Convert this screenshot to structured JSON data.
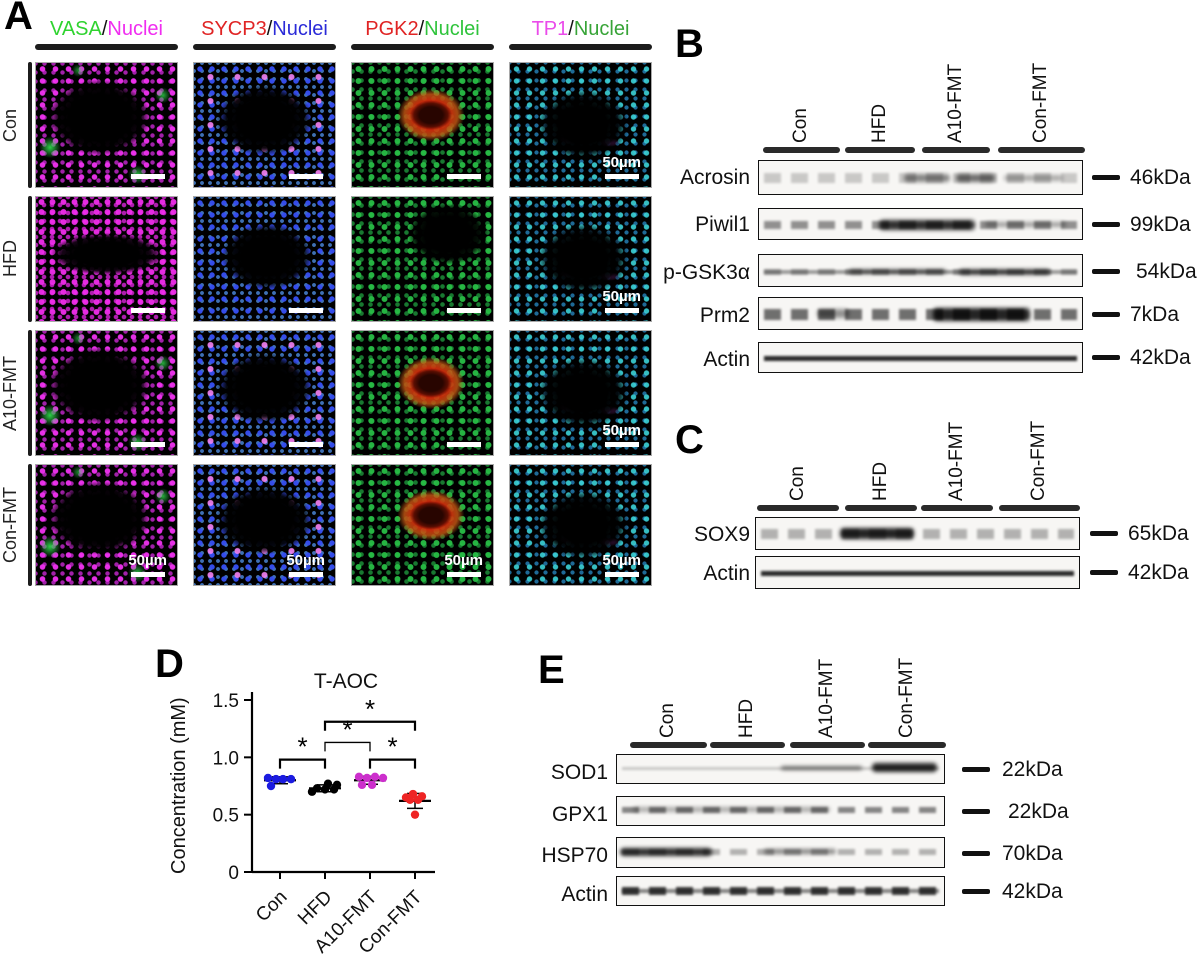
{
  "panel_a": {
    "label": "A",
    "separator": "/",
    "scale_label": "50µm",
    "columns": [
      {
        "stain": "VASA",
        "stain_color": "#2fd32f",
        "counter": "Nuclei",
        "counter_color": "#f02df0"
      },
      {
        "stain": "SYCP3",
        "stain_color": "#e02424",
        "counter": "Nuclei",
        "counter_color": "#2b2bd8"
      },
      {
        "stain": "PGK2",
        "stain_color": "#e02424",
        "counter": "Nuclei",
        "counter_color": "#2fc43c"
      },
      {
        "stain": "TP1",
        "stain_color": "#ea4bea",
        "counter": "Nuclei",
        "counter_color": "#37a437"
      }
    ],
    "rows": [
      "Con",
      "HFD",
      "A10-FMT",
      "Con-FMT"
    ]
  },
  "panel_b": {
    "label": "B",
    "groups": [
      "Con",
      "HFD",
      "A10-FMT",
      "Con-FMT"
    ],
    "blots": [
      {
        "protein": "Acrosin",
        "size": "46kDa"
      },
      {
        "protein": "Piwil1",
        "size": "99kDa"
      },
      {
        "protein": "p-GSK3α",
        "size": "54kDa"
      },
      {
        "protein": "Prm2",
        "size": "7kDa"
      },
      {
        "protein": "Actin",
        "size": "42kDa"
      }
    ]
  },
  "panel_c": {
    "label": "C",
    "groups": [
      "Con",
      "HFD",
      "A10-FMT",
      "Con-FMT"
    ],
    "blots": [
      {
        "protein": "SOX9",
        "size": "65kDa"
      },
      {
        "protein": "Actin",
        "size": "42kDa"
      }
    ]
  },
  "panel_d": {
    "label": "D"
  },
  "chart_data": {
    "type": "scatter",
    "title": "T-AOC",
    "ylabel": "Concentration (mM)",
    "ylim": [
      0,
      1.5
    ],
    "yticks": [
      0,
      0.5,
      1.0,
      1.5
    ],
    "categories": [
      "Con",
      "HFD",
      "A10-FMT",
      "Con-FMT"
    ],
    "series": [
      {
        "name": "Con",
        "color": "#1b1be0",
        "values": [
          0.82,
          0.81,
          0.81,
          0.81,
          0.75
        ],
        "mean": 0.8,
        "sd": 0.03
      },
      {
        "name": "HFD",
        "color": "#000000",
        "values": [
          0.77,
          0.76,
          0.73,
          0.72,
          0.72,
          0.7
        ],
        "mean": 0.73,
        "sd": 0.03
      },
      {
        "name": "A10-FMT",
        "color": "#cc2fcc",
        "values": [
          0.83,
          0.82,
          0.83,
          0.82,
          0.76,
          0.76
        ],
        "mean": 0.8,
        "sd": 0.035
      },
      {
        "name": "Con-FMT",
        "color": "#ee2424",
        "values": [
          0.68,
          0.66,
          0.65,
          0.63,
          0.63,
          0.5
        ],
        "mean": 0.62,
        "sd": 0.065
      }
    ],
    "significance": [
      {
        "from": 0,
        "to": 1,
        "y": 0.98,
        "label": "*"
      },
      {
        "from": 1,
        "to": 2,
        "y": 1.13,
        "label": "*",
        "thin": true
      },
      {
        "from": 1,
        "to": 3,
        "y": 1.31,
        "label": "*"
      },
      {
        "from": 2,
        "to": 3,
        "y": 0.98,
        "label": "*"
      }
    ]
  },
  "panel_e": {
    "label": "E",
    "groups": [
      "Con",
      "HFD",
      "A10-FMT",
      "Con-FMT"
    ],
    "blots": [
      {
        "protein": "SOD1",
        "size": "22kDa"
      },
      {
        "protein": "GPX1",
        "size": "22kDa"
      },
      {
        "protein": "HSP70",
        "size": "70kDa"
      },
      {
        "protein": "Actin",
        "size": "42kDa"
      }
    ]
  }
}
